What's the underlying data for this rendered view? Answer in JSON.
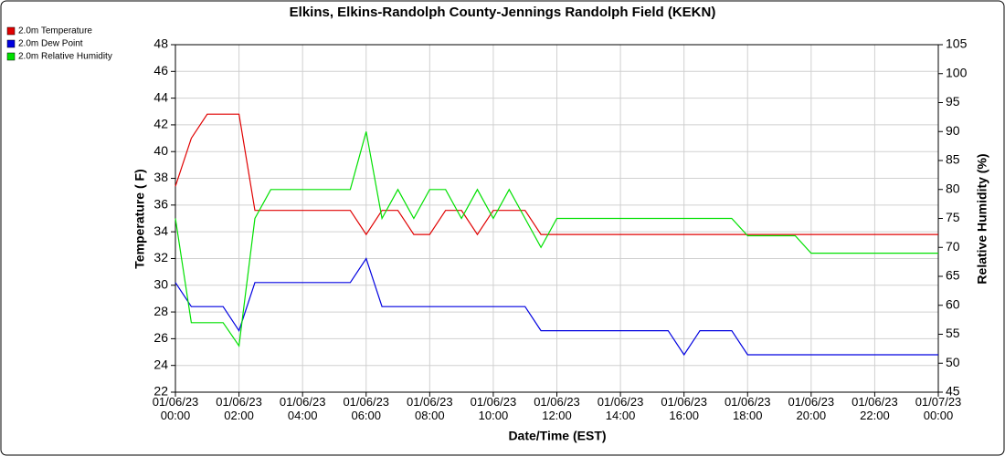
{
  "chart_data": {
    "type": "line",
    "title": "Elkins, Elkins-Randolph County-Jennings Randolph Field (KEKN)",
    "x_label": "Date/Time (EST)",
    "y_label": "Temperature ( F)",
    "y2_label": "Relative Humidity (%)",
    "x": [
      "01/06/23 00:00",
      "01/06/23 00:30",
      "01/06/23 01:00",
      "01/06/23 01:30",
      "01/06/23 02:00",
      "01/06/23 02:30",
      "01/06/23 03:00",
      "01/06/23 03:30",
      "01/06/23 04:00",
      "01/06/23 04:30",
      "01/06/23 05:00",
      "01/06/23 05:30",
      "01/06/23 06:00",
      "01/06/23 06:30",
      "01/06/23 07:00",
      "01/06/23 07:30",
      "01/06/23 08:00",
      "01/06/23 08:30",
      "01/06/23 09:00",
      "01/06/23 09:30",
      "01/06/23 10:00",
      "01/06/23 10:30",
      "01/06/23 11:00",
      "01/06/23 11:30",
      "01/06/23 12:00",
      "01/06/23 12:30",
      "01/06/23 13:00",
      "01/06/23 13:30",
      "01/06/23 14:00",
      "01/06/23 14:30",
      "01/06/23 15:00",
      "01/06/23 15:30",
      "01/06/23 16:00",
      "01/06/23 16:30",
      "01/06/23 17:00",
      "01/06/23 17:30",
      "01/06/23 18:00",
      "01/06/23 18:30",
      "01/06/23 19:00",
      "01/06/23 19:30",
      "01/06/23 20:00",
      "01/06/23 20:30",
      "01/06/23 21:00",
      "01/06/23 21:30",
      "01/06/23 22:00",
      "01/06/23 22:30",
      "01/06/23 23:00",
      "01/06/23 23:30",
      "01/07/23 00:00"
    ],
    "series": [
      {
        "name": "2.0m Temperature",
        "color": "#e00000",
        "values": [
          37.4,
          41.0,
          42.8,
          42.8,
          42.8,
          35.6,
          35.6,
          35.6,
          35.6,
          35.6,
          35.6,
          35.6,
          33.8,
          35.6,
          35.6,
          33.8,
          33.8,
          35.6,
          35.6,
          33.8,
          35.6,
          35.6,
          35.6,
          33.8,
          33.8,
          33.8,
          33.8,
          33.8,
          33.8,
          33.8,
          33.8,
          33.8,
          33.8,
          33.8,
          33.8,
          33.8,
          33.8,
          33.8,
          33.8,
          33.8,
          33.8,
          33.8,
          33.8,
          33.8,
          33.8,
          33.8,
          33.8,
          33.8,
          33.8
        ]
      },
      {
        "name": "2.0m Dew Point",
        "color": "#0000e0",
        "values": [
          30.2,
          28.4,
          28.4,
          28.4,
          26.6,
          30.2,
          30.2,
          30.2,
          30.2,
          30.2,
          30.2,
          30.2,
          32.0,
          28.4,
          28.4,
          28.4,
          28.4,
          28.4,
          28.4,
          28.4,
          28.4,
          28.4,
          28.4,
          26.6,
          26.6,
          26.6,
          26.6,
          26.6,
          26.6,
          26.6,
          26.6,
          26.6,
          24.8,
          26.6,
          26.6,
          26.6,
          24.8,
          24.8,
          24.8,
          24.8,
          24.8,
          24.8,
          24.8,
          24.8,
          24.8,
          24.8,
          24.8,
          24.8,
          24.8
        ]
      },
      {
        "name": "2.0m Relative Humidity",
        "color": "#00e000",
        "axis": "y2",
        "values": [
          75,
          57,
          57,
          57,
          53,
          75,
          80,
          80,
          80,
          80,
          80,
          80,
          90,
          75,
          80,
          75,
          80,
          80,
          75,
          80,
          75,
          80,
          75,
          70,
          75,
          75,
          75,
          75,
          75,
          75,
          75,
          75,
          75,
          75,
          75,
          75,
          72,
          72,
          72,
          72,
          69,
          69,
          69,
          69,
          69,
          69,
          69,
          69,
          69
        ]
      }
    ],
    "xlim": [
      "01/06/23 00:00",
      "01/07/23 00:00"
    ],
    "xticks": [
      "01/06/23 00:00",
      "01/06/23 02:00",
      "01/06/23 04:00",
      "01/06/23 06:00",
      "01/06/23 08:00",
      "01/06/23 10:00",
      "01/06/23 12:00",
      "01/06/23 14:00",
      "01/06/23 16:00",
      "01/06/23 18:00",
      "01/06/23 20:00",
      "01/06/23 22:00",
      "01/07/23 00:00"
    ],
    "ylim": [
      22,
      48
    ],
    "yticks": [
      22,
      24,
      26,
      28,
      30,
      32,
      34,
      36,
      38,
      40,
      42,
      44,
      46,
      48
    ],
    "y2lim": [
      45,
      105
    ],
    "y2ticks": [
      45,
      50,
      55,
      60,
      65,
      70,
      75,
      80,
      85,
      90,
      95,
      100,
      105
    ],
    "grid": true,
    "legend": "top-left"
  }
}
